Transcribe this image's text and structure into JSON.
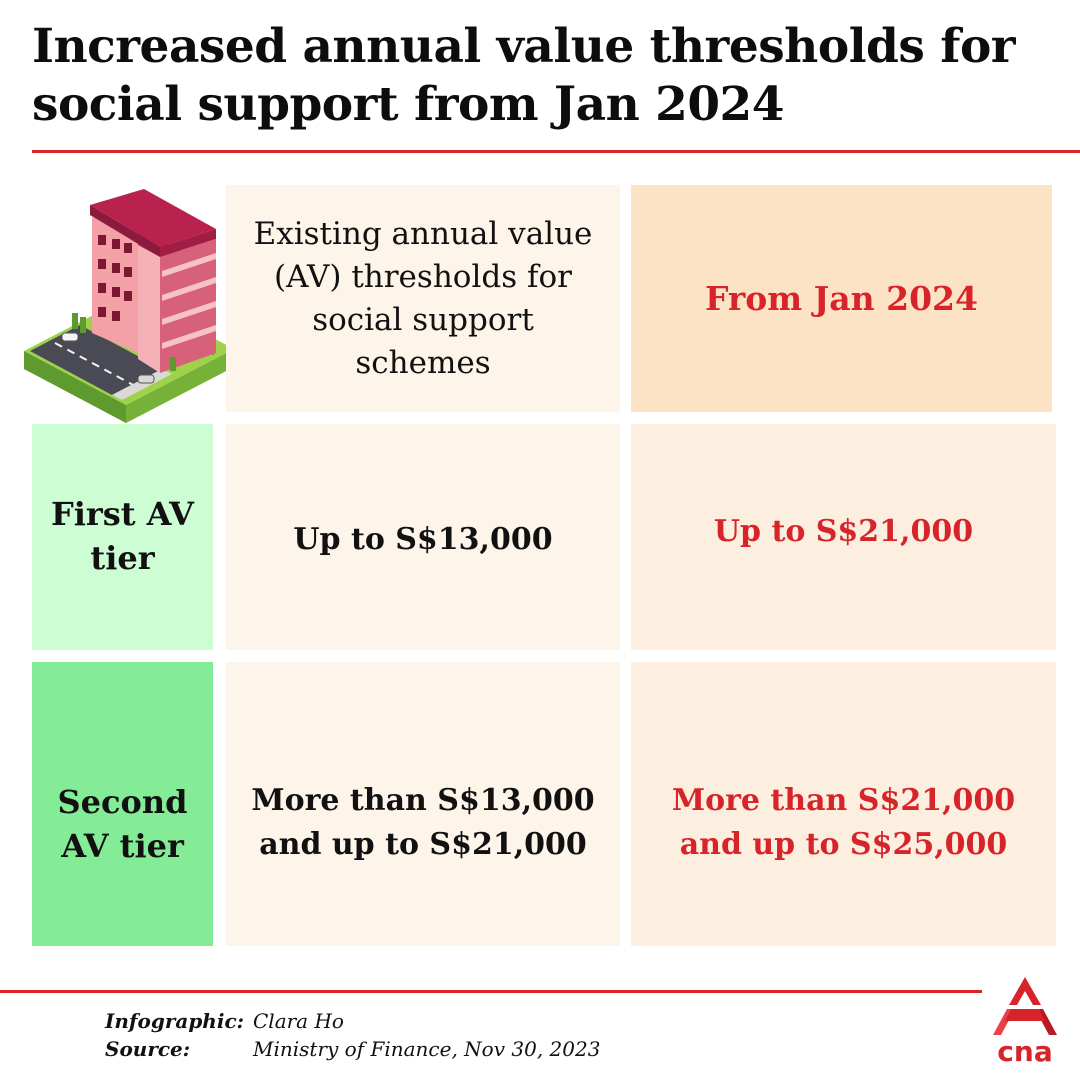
{
  "title": {
    "line1": "Increased annual value thresholds for",
    "line2": "social support from Jan 2024"
  },
  "colors": {
    "accent_red": "#d7232a",
    "header_existing_bg": "#fdf4ea",
    "header_from_bg": "#fde3c5",
    "first_tier_bg": "#ccfdd3",
    "second_tier_bg": "#84ec97",
    "value_from_bg": "#fdefdf"
  },
  "table": {
    "header_existing": "Existing annual value (AV) thresholds for social support schemes",
    "header_from": "From Jan 2024",
    "rows": [
      {
        "label": "First AV tier",
        "existing": "Up to S$13,000",
        "from": "Up to S$21,000"
      },
      {
        "label": "Second AV tier",
        "existing": "More than S$13,000 and up to S$21,000",
        "from": "More than S$21,000 and up to S$25,000"
      }
    ]
  },
  "illustration": {
    "icon": "apartment-building-icon"
  },
  "footer": {
    "infographic_label": "Infographic:",
    "infographic_value": "Clara Ho",
    "source_label": "Source:",
    "source_value": "Ministry of Finance, Nov 30, 2023",
    "logo_text": "cna"
  }
}
